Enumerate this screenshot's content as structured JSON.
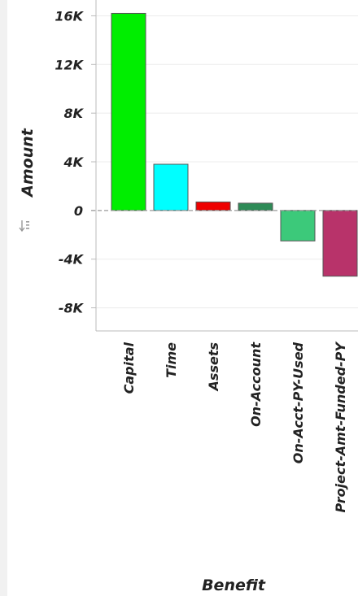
{
  "chart_data": {
    "type": "bar",
    "xlabel": "Benefit",
    "ylabel": "Amount",
    "categories": [
      "Capital",
      "Time",
      "Assets",
      "On-Account",
      "On-Acct-PY-Used",
      "Project-Amt-Funded-PY"
    ],
    "values": [
      16200,
      3800,
      700,
      600,
      -2500,
      -5400
    ],
    "colors": [
      "#00ee00",
      "#00ffff",
      "#ee0000",
      "#2e8b57",
      "#3cc97a",
      "#b8336a"
    ],
    "yticks": [
      16000,
      12000,
      8000,
      4000,
      0,
      -4000,
      -8000
    ],
    "ytick_labels": [
      "16K",
      "12K",
      "8K",
      "4K",
      "0",
      "-4K",
      "-8K"
    ],
    "ylim": [
      -9900,
      17300
    ],
    "grid": true,
    "zero_line": "dashed"
  },
  "icons": {
    "sort": "sort-icon"
  }
}
